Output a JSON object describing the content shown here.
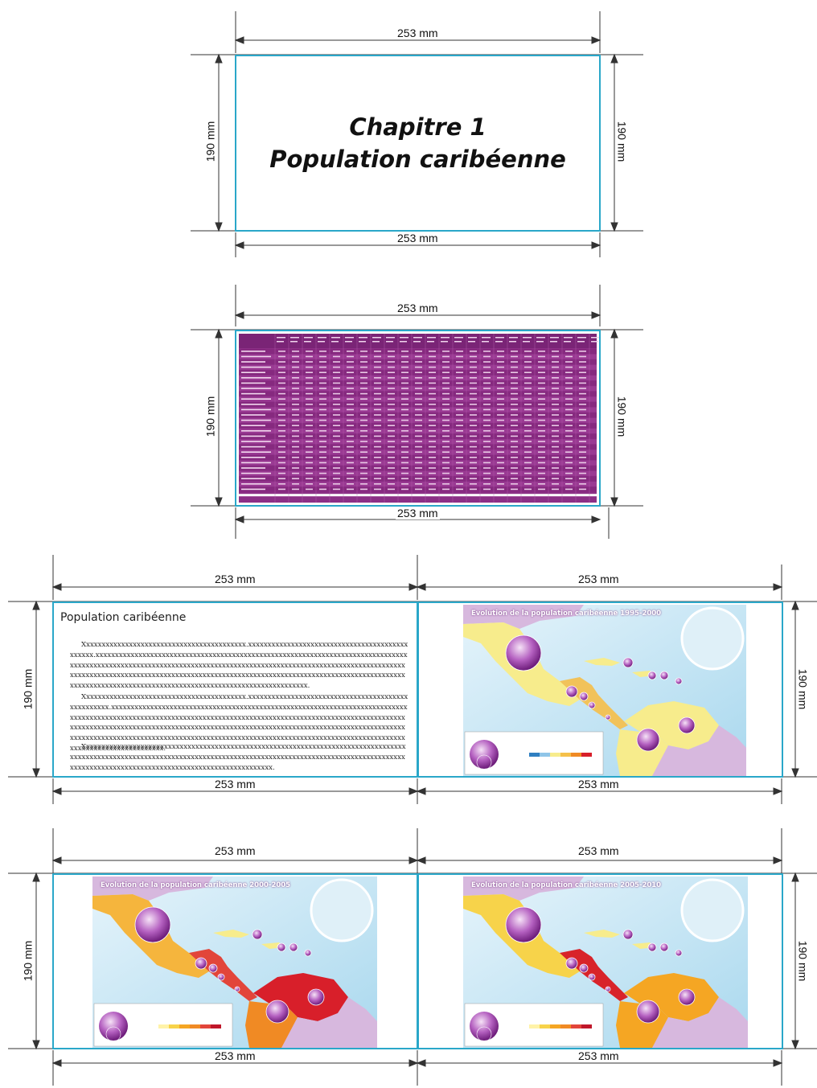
{
  "dimensions": {
    "width_label": "253 mm",
    "height_label": "190 mm"
  },
  "page1": {
    "title_line1": "Chapitre 1",
    "title_line2": "Population caribéenne"
  },
  "page3": {
    "text_title": "Population caribéenne",
    "paragraphs": [
      "Xxxxxxxxxxxxxxxxxxxxxxxxxxxxxxxxxxxxxxxxxx.xxxxxxxxxxxxxxxxxxxxxxxxxxxxxxxxxxxxxxxxxxxxxxx.xxxxxxxxxxxxxxxxxxxxxxxxxxxxxxxxxxxxxxxxxxxxxxxxxxxxxxxxxxxxxxxxxxxxxxxxxxxxxxxxxxxxxxxxxxxxxxxxxxxxxxxxxxxxxxxxxxxxxxxxxxxxxxxxxxxxxxxxxxxxxxxxxxxxxxxxxxxxxxxxxxxxxxxxxxxxxxxxxxxxxxxxxxxxxxxxxxxxxxxxxxxxxxxxxxxxxxxxxxxxxxxxxxxxxxxxxxxxxxxxxxxxxxxxxxxxxxxxxxxxxxxxxxxxxxxxxxxxxxxxxxxxxxxxxxxxxxxxxxxxxxxxxxxxxxxxx.",
      "Xxxxxxxxxxxxxxxxxxxxxxxxxxxxxxxxxxxxxxxxxx.xxxxxxxxxxxxxxxxxxxxxxxxxxxxxxxxxxxxxxxxxxxxxxxxxxx.xxxxxxxxxxxxxxxxxxxxxxxxxxxxxxxxxxxxxxxxxxxxxxxxxxxxxxxxxxxxxxxxxxxxxxxxxxxxxxxxxxxxxxxxxxxxxxxxxxxxxxxxxxxxxxxxxxxxxxxxxxxxxxxxxxxxxxxxxxxxxxxxxxxxxxxxxxxxxxxxxxxxxxxxxxxxxxxxxxxxxxxxxxxxxxxxxxxxxxxxxxxxxxxxxxxxxxxxxxxxxxxxxxxxxxxxxxxxxxxxxxxxxxxxxxxxxxxxxxxxxxxxxxxxxxxxxxxxxxxxxxxxxxxxxxxxxxxxxxxxxxxxxxxxxxxxxxxxxxxxxxxxxxxxxxxxxxxxxxxxxxxxxxxxxxxxxxxxxx.",
      "Xxxxxxxxxxxxxxxxxxxxxxxxxxxxxxxxxxxxxxxxxxxxxxxxxxxxxxxxxxxxxxxxxxxxxxxxxxxxxxxxxxxxxxxxxxxxxxxxxxxxxxxxxxxxxxxxxxxxxxxxxxxxxxxxxxxxxxxxxxxxxxxxxxxxxxxxxxxxxxxxxxxxxxxxxxxxxxxxxxxxxxxxxxxxxxxxxxxxxxxxxxxxxxxxxxxxxxxxxxxxx."
    ]
  },
  "maps": [
    {
      "title": "Evolution de la population caribéenne 1995-2000"
    },
    {
      "title": "Evolution de la population caribéenne 2000-2005"
    },
    {
      "title": "Evolution de la population caribéenne 2005-2010"
    }
  ],
  "colors": {
    "frame": "#2aa7c9",
    "table_purple": "#8c2f86",
    "sea": "#bfe3f2",
    "bubble": "#9b3aa8"
  }
}
